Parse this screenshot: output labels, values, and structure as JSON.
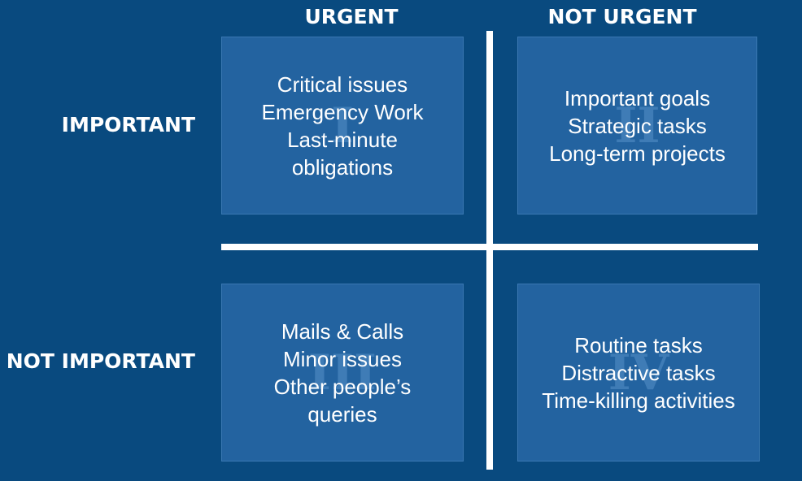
{
  "columns": {
    "urgent": "URGENT",
    "not_urgent": "NOT URGENT"
  },
  "rows": {
    "important": "IMPORTANT",
    "not_important": "NOT IMPORTANT"
  },
  "quadrants": {
    "q1": {
      "numeral": "I",
      "lines": [
        "Critical issues",
        "Emergency Work",
        "Last-minute",
        "obligations"
      ]
    },
    "q2": {
      "numeral": "II",
      "lines": [
        "Important goals",
        "Strategic tasks",
        "Long-term projects"
      ]
    },
    "q3": {
      "numeral": "III",
      "lines": [
        "Mails & Calls",
        "Minor issues",
        "Other people’s",
        "queries"
      ]
    },
    "q4": {
      "numeral": "IV",
      "lines": [
        "Routine tasks",
        "Distractive tasks",
        "Time-killing activities"
      ]
    }
  },
  "colors": {
    "background": "#094a7f",
    "quadrant_fill": "#2363a0",
    "numeral": "#3f7cb6",
    "text": "#ffffff"
  }
}
